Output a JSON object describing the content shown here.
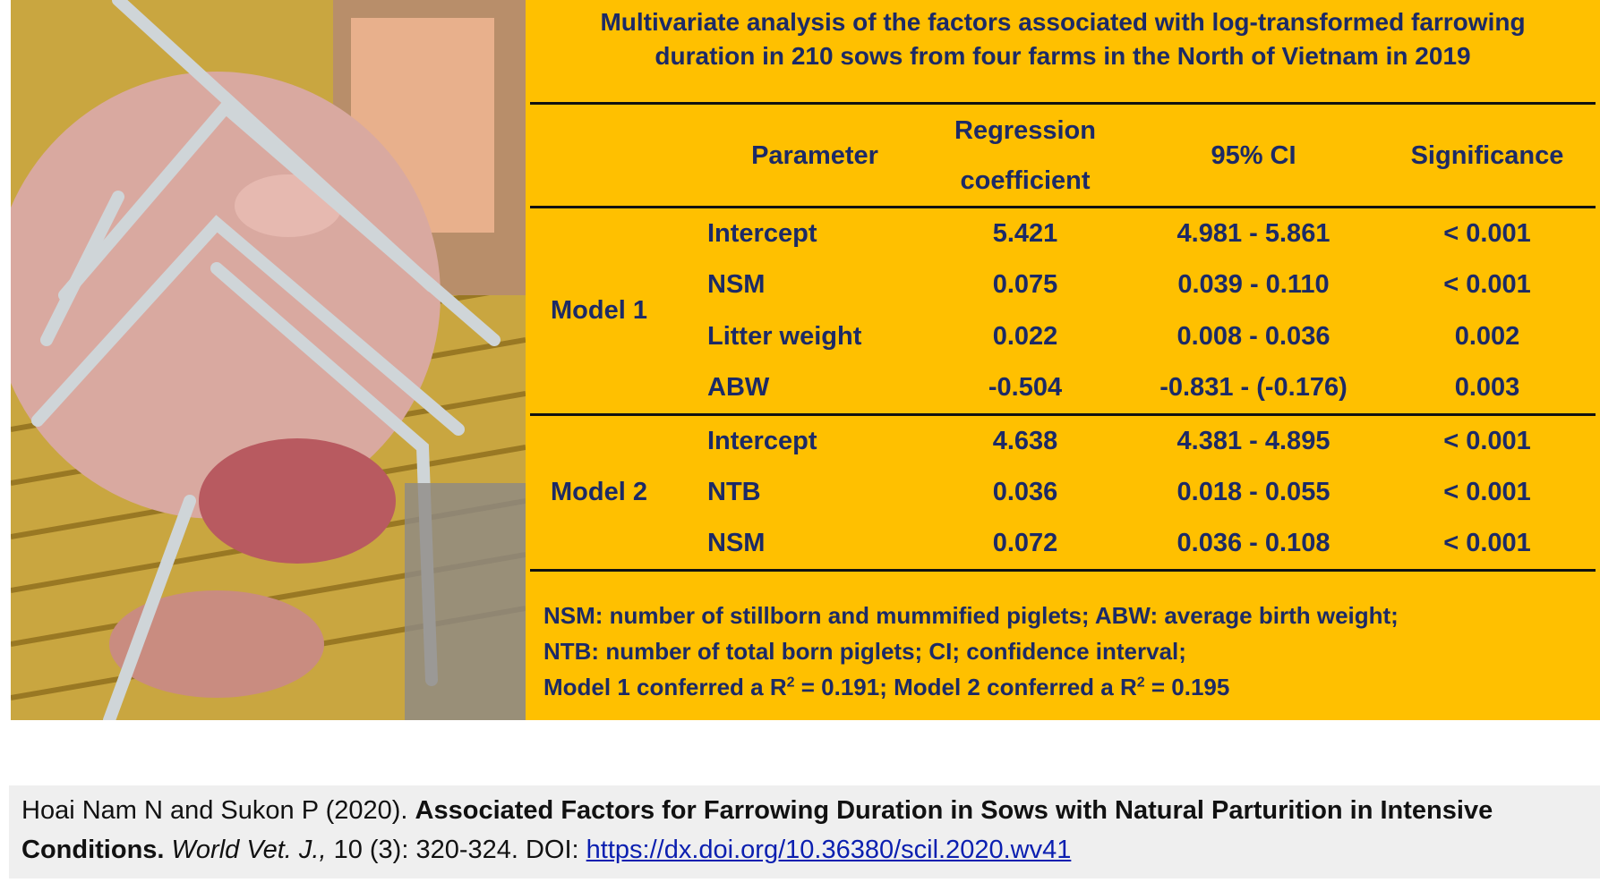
{
  "title": [
    "Multivariate analysis of the factors associated with log-transformed farrowing",
    "duration in 210 sows from four farms in the North of Vietnam in 2019"
  ],
  "table": {
    "header": [
      "Parameter",
      [
        "Regression",
        "coefficient"
      ],
      "95% CI",
      "Significance"
    ],
    "groups": [
      {
        "model": "Model 1",
        "rows": [
          [
            "Intercept",
            "5.421",
            "4.981 - 5.861",
            "< 0.001"
          ],
          [
            "NSM",
            "0.075",
            "0.039 - 0.110",
            "< 0.001"
          ],
          [
            "Litter weight",
            "0.022",
            "0.008 - 0.036",
            "0.002"
          ],
          [
            "ABW",
            "-0.504",
            "-0.831 - (-0.176)",
            "0.003"
          ]
        ]
      },
      {
        "model": "Model 2",
        "rows": [
          [
            "Intercept",
            "4.638",
            "4.381 - 4.895",
            "< 0.001"
          ],
          [
            "NTB",
            "0.036",
            "0.018 - 0.055",
            "< 0.001"
          ],
          [
            "NSM",
            "0.072",
            "0.036 - 0.108",
            "< 0.001"
          ]
        ]
      }
    ]
  },
  "notes": [
    [
      "NSM: number of stillborn and mummified piglets; ABW: average birth weight;"
    ],
    [
      "NTB: number of total born piglets; CI; confidence interval;"
    ],
    [
      "Model 1 conferred a R",
      "2",
      " = 0.191; Model 2 conferred a R",
      "2",
      " = 0.195"
    ]
  ],
  "citation": {
    "authors": "Hoai Nam N and Sukon P (2020).",
    "title": "Associated Factors for Farrowing Duration in Sows with Natural Parturition in Intensive Conditions.",
    "journal": "World Vet. J.,",
    "details": "10 (3): 320-324. DOI:",
    "link": "https://dx.doi.org/10.36380/scil.2020.wv41"
  }
}
